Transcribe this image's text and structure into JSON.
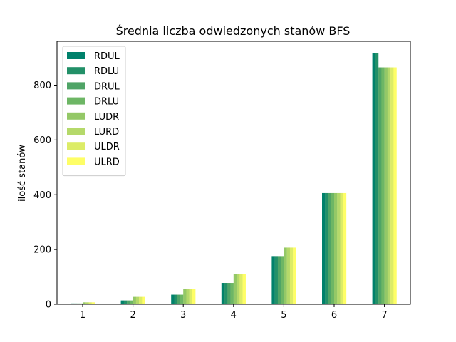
{
  "chart_data": {
    "type": "bar",
    "title": "Średnia liczba odwiedzonych stanów BFS",
    "xlabel": "",
    "ylabel": "ilość stanów",
    "categories": [
      "1",
      "2",
      "3",
      "4",
      "5",
      "6",
      "7"
    ],
    "ylim": [
      0,
      960
    ],
    "yticks": [
      0,
      200,
      400,
      600,
      800
    ],
    "grid": false,
    "legend_position": "top-left",
    "series": [
      {
        "name": "RDUL",
        "color": "#00816b",
        "values": [
          3,
          14,
          35,
          78,
          176,
          406,
          918
        ]
      },
      {
        "name": "RDLU",
        "color": "#229068",
        "values": [
          3,
          14,
          35,
          78,
          176,
          406,
          918
        ]
      },
      {
        "name": "DRUL",
        "color": "#4fa466",
        "values": [
          3,
          14,
          35,
          78,
          176,
          406,
          865
        ]
      },
      {
        "name": "DRLU",
        "color": "#6db665",
        "values": [
          3,
          14,
          35,
          78,
          176,
          406,
          865
        ]
      },
      {
        "name": "LUDR",
        "color": "#94c867",
        "values": [
          7,
          27,
          57,
          110,
          207,
          406,
          865
        ]
      },
      {
        "name": "LURD",
        "color": "#b5d96a",
        "values": [
          7,
          27,
          57,
          110,
          207,
          406,
          865
        ]
      },
      {
        "name": "ULDR",
        "color": "#dcec67",
        "values": [
          7,
          27,
          57,
          110,
          207,
          406,
          865
        ]
      },
      {
        "name": "ULRD",
        "color": "#fefe66",
        "values": [
          7,
          27,
          57,
          110,
          207,
          406,
          865
        ]
      }
    ]
  }
}
